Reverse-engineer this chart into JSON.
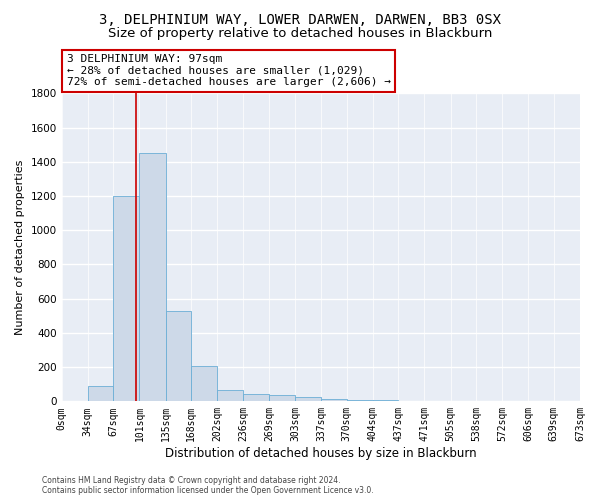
{
  "title": "3, DELPHINIUM WAY, LOWER DARWEN, DARWEN, BB3 0SX",
  "subtitle": "Size of property relative to detached houses in Blackburn",
  "xlabel": "Distribution of detached houses by size in Blackburn",
  "ylabel": "Number of detached properties",
  "bar_edges": [
    0,
    34,
    67,
    101,
    135,
    168,
    202,
    236,
    269,
    303,
    337,
    370,
    404,
    437,
    471,
    505,
    538,
    572,
    606,
    639,
    673
  ],
  "bar_heights": [
    0,
    90,
    1200,
    1450,
    530,
    205,
    65,
    45,
    35,
    28,
    15,
    8,
    5,
    3,
    2,
    1,
    1,
    0,
    0,
    0
  ],
  "bar_color": "#cdd9e8",
  "bar_edge_color": "#6baed6",
  "bg_color": "#e8edf5",
  "grid_color": "#ffffff",
  "property_size": 97,
  "vline_color": "#cc0000",
  "annotation_line1": "3 DELPHINIUM WAY: 97sqm",
  "annotation_line2": "← 28% of detached houses are smaller (1,029)",
  "annotation_line3": "72% of semi-detached houses are larger (2,606) →",
  "annotation_box_color": "#ffffff",
  "annotation_box_edge": "#cc0000",
  "ylim": [
    0,
    1800
  ],
  "yticks": [
    0,
    200,
    400,
    600,
    800,
    1000,
    1200,
    1400,
    1600,
    1800
  ],
  "footer": "Contains HM Land Registry data © Crown copyright and database right 2024.\nContains public sector information licensed under the Open Government Licence v3.0.",
  "title_fontsize": 10,
  "subtitle_fontsize": 9.5,
  "xlabel_fontsize": 8.5,
  "ylabel_fontsize": 8,
  "annotation_fontsize": 8,
  "tick_fontsize": 7,
  "ytick_fontsize": 7.5,
  "tick_labels": [
    "0sqm",
    "34sqm",
    "67sqm",
    "101sqm",
    "135sqm",
    "168sqm",
    "202sqm",
    "236sqm",
    "269sqm",
    "303sqm",
    "337sqm",
    "370sqm",
    "404sqm",
    "437sqm",
    "471sqm",
    "505sqm",
    "538sqm",
    "572sqm",
    "606sqm",
    "639sqm",
    "673sqm"
  ]
}
